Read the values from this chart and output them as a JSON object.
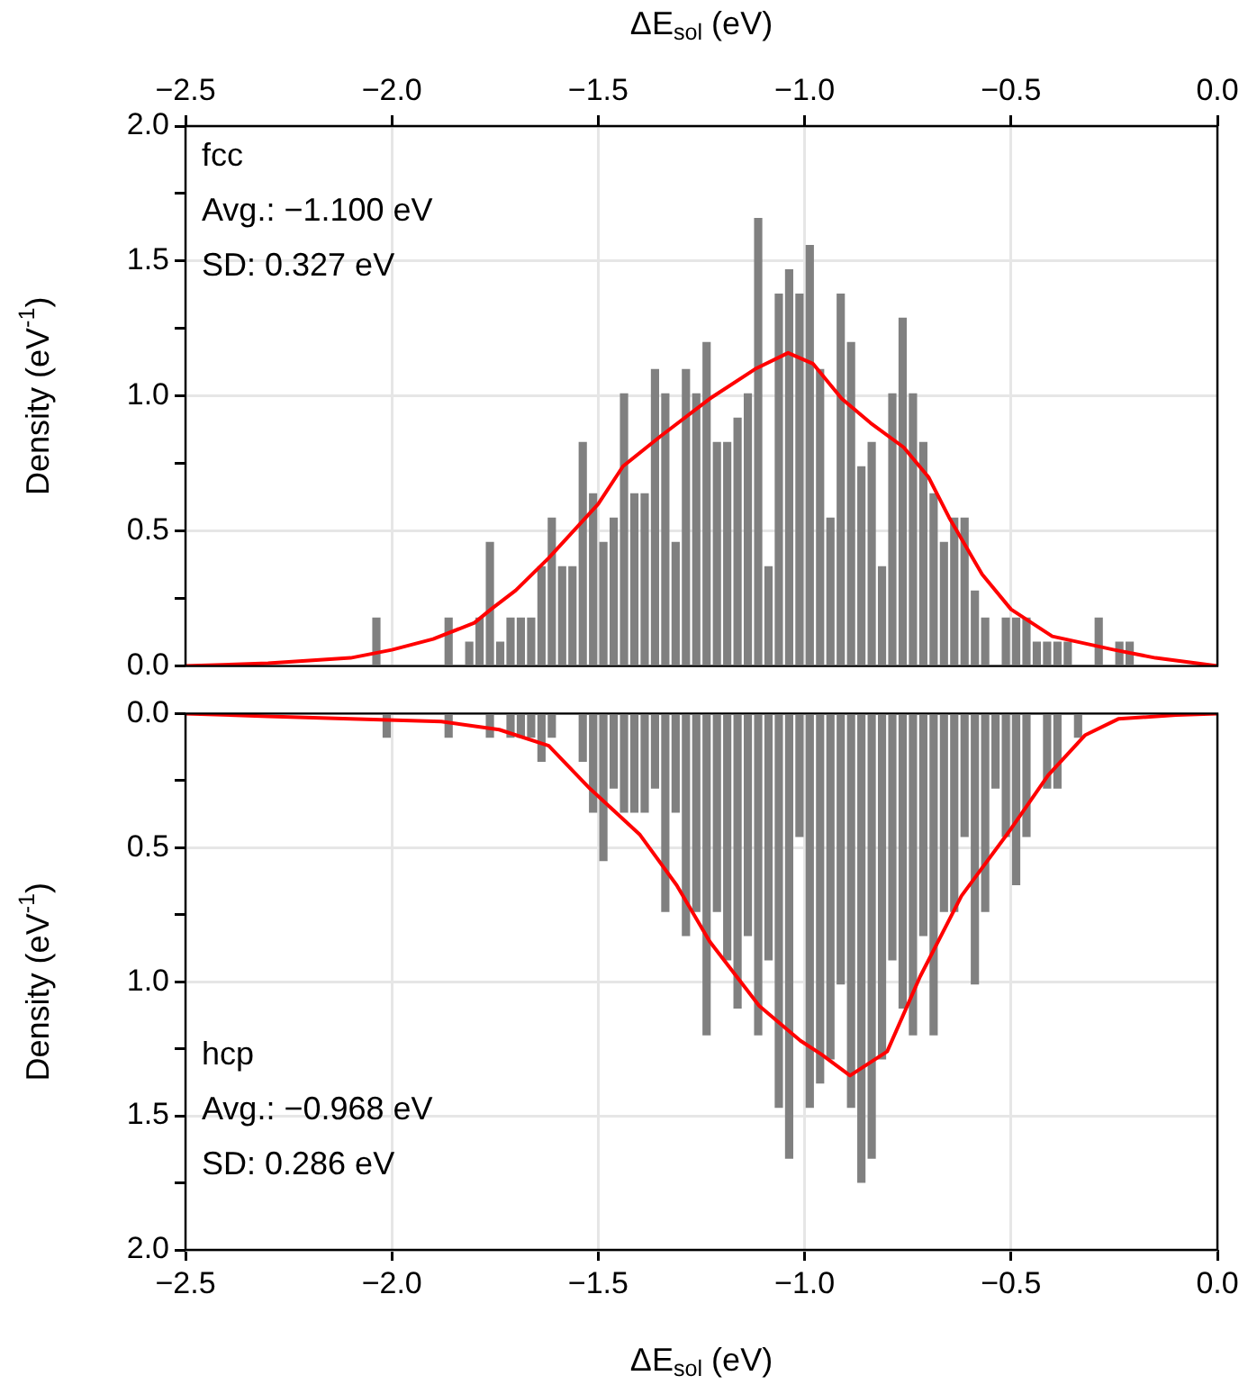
{
  "chart_data": [
    {
      "type": "histogram",
      "xlabel": "ΔE$_{sol}$ (eV)",
      "ylabel": "Density (eV$^{-1}$)",
      "xlim": [
        -2.5,
        0.0
      ],
      "xticks": [
        {
          "value": -2.5,
          "label": "−2.5"
        },
        {
          "value": -2,
          "label": "−2.0"
        },
        {
          "value": -1.5,
          "label": "−1.5"
        },
        {
          "value": -1,
          "label": "−1.0"
        },
        {
          "value": -0.5,
          "label": "−0.5"
        },
        {
          "value": 0,
          "label": "0.0"
        }
      ],
      "ylim": [
        0,
        2.0
      ],
      "yticks": [
        {
          "value": 0,
          "label": "0.0"
        },
        {
          "value": 0.25,
          "label": null
        },
        {
          "value": 0.5,
          "label": "0.5"
        },
        {
          "value": 0.75,
          "label": null
        },
        {
          "value": 1,
          "label": "1.0"
        },
        {
          "value": 1.25,
          "label": null
        },
        {
          "value": 1.5,
          "label": "1.5"
        },
        {
          "value": 1.75,
          "label": null
        },
        {
          "value": 2,
          "label": "2.0"
        }
      ],
      "grid": true,
      "annotations": [
        "fcc",
        "Avg.: −1.100 eV",
        "SD: 0.327 eV"
      ],
      "bins": [
        -2.05,
        -2.025,
        -2.0,
        -1.975,
        -1.95,
        -1.925,
        -1.9,
        -1.875,
        -1.85,
        -1.825,
        -1.8,
        -1.775,
        -1.75,
        -1.725,
        -1.7,
        -1.675,
        -1.65,
        -1.625,
        -1.6,
        -1.575,
        -1.55,
        -1.525,
        -1.5,
        -1.475,
        -1.45,
        -1.425,
        -1.4,
        -1.375,
        -1.35,
        -1.325,
        -1.3,
        -1.275,
        -1.25,
        -1.225,
        -1.2,
        -1.175,
        -1.15,
        -1.125,
        -1.1,
        -1.075,
        -1.05,
        -1.025,
        -1.0,
        -0.975,
        -0.95,
        -0.925,
        -0.9,
        -0.875,
        -0.85,
        -0.825,
        -0.8,
        -0.775,
        -0.75,
        -0.725,
        -0.7,
        -0.675,
        -0.65,
        -0.625,
        -0.6,
        -0.575,
        -0.55,
        -0.525,
        -0.5,
        -0.475,
        -0.45,
        -0.425,
        -0.4,
        -0.375,
        -0.35,
        -0.325,
        -0.3,
        -0.275,
        -0.25,
        -0.225,
        -0.2
      ],
      "series": [
        {
          "color": "#808080",
          "values": [
            0.18,
            0,
            0,
            0,
            0,
            0,
            0,
            0.18,
            0,
            0.09,
            0.18,
            0.46,
            0.09,
            0.18,
            0.18,
            0.18,
            0.37,
            0.55,
            0.37,
            0.37,
            0.83,
            0.64,
            0.46,
            0.55,
            1.01,
            0.64,
            0.64,
            1.1,
            1.01,
            0.46,
            1.1,
            1.01,
            1.2,
            0.83,
            0.83,
            0.92,
            1.01,
            1.66,
            0.37,
            1.38,
            1.47,
            1.38,
            1.56,
            1.1,
            0.55,
            1.38,
            1.2,
            0.74,
            0.83,
            0.37,
            1.01,
            1.29,
            1.01,
            0.83,
            0.64,
            0.46,
            0.55,
            0.55,
            0.28,
            0.18,
            0,
            0.18,
            0.18,
            0.18,
            0.09,
            0.09,
            0.09,
            0.09,
            0,
            0,
            0.18,
            0,
            0.09,
            0.09
          ]
        },
        {
          "type": "line",
          "color": "#ff0000",
          "x": [
            -2.5,
            -2.3,
            -2.1,
            -2.0,
            -1.9,
            -1.8,
            -1.76,
            -1.7,
            -1.62,
            -1.5,
            -1.44,
            -1.35,
            -1.23,
            -1.12,
            -1.04,
            -0.98,
            -0.91,
            -0.84,
            -0.76,
            -0.7,
            -0.65,
            -0.57,
            -0.5,
            -0.4,
            -0.25,
            -0.15,
            -0.05,
            0
          ],
          "values": [
            0,
            0.01,
            0.03,
            0.06,
            0.1,
            0.16,
            0.21,
            0.28,
            0.4,
            0.6,
            0.74,
            0.85,
            0.99,
            1.1,
            1.16,
            1.12,
            0.99,
            0.9,
            0.81,
            0.7,
            0.55,
            0.34,
            0.21,
            0.11,
            0.06,
            0.03,
            0.01,
            0
          ]
        }
      ]
    },
    {
      "type": "histogram",
      "xlabel": "ΔE$_{sol}$ (eV)",
      "ylabel": "Density (eV$^{-1}$)",
      "xlim": [
        -2.5,
        0.0
      ],
      "xticks": [
        {
          "value": -2.5,
          "label": "−2.5"
        },
        {
          "value": -2,
          "label": "−2.0"
        },
        {
          "value": -1.5,
          "label": "−1.5"
        },
        {
          "value": -1,
          "label": "−1.0"
        },
        {
          "value": -0.5,
          "label": "−0.5"
        },
        {
          "value": 0,
          "label": "0.0"
        }
      ],
      "ylim": [
        2.0,
        0
      ],
      "yticks": [
        {
          "value": 0,
          "label": "0.0"
        },
        {
          "value": 0.25,
          "label": null
        },
        {
          "value": 0.5,
          "label": "0.5"
        },
        {
          "value": 0.75,
          "label": null
        },
        {
          "value": 1,
          "label": "1.0"
        },
        {
          "value": 1.25,
          "label": null
        },
        {
          "value": 1.5,
          "label": "1.5"
        },
        {
          "value": 1.75,
          "label": null
        },
        {
          "value": 2,
          "label": "2.0"
        }
      ],
      "grid": true,
      "annotations": [
        "hcp",
        "Avg.: −0.968 eV",
        "SD: 0.286 eV"
      ],
      "bins": [
        -2.05,
        -2.025,
        -2.0,
        -1.975,
        -1.95,
        -1.925,
        -1.9,
        -1.875,
        -1.85,
        -1.825,
        -1.8,
        -1.775,
        -1.75,
        -1.725,
        -1.7,
        -1.675,
        -1.65,
        -1.625,
        -1.6,
        -1.575,
        -1.55,
        -1.525,
        -1.5,
        -1.475,
        -1.45,
        -1.425,
        -1.4,
        -1.375,
        -1.35,
        -1.325,
        -1.3,
        -1.275,
        -1.25,
        -1.225,
        -1.2,
        -1.175,
        -1.15,
        -1.125,
        -1.1,
        -1.075,
        -1.05,
        -1.025,
        -1.0,
        -0.975,
        -0.95,
        -0.925,
        -0.9,
        -0.875,
        -0.85,
        -0.825,
        -0.8,
        -0.775,
        -0.75,
        -0.725,
        -0.7,
        -0.675,
        -0.65,
        -0.625,
        -0.6,
        -0.575,
        -0.55,
        -0.525,
        -0.5,
        -0.475,
        -0.45,
        -0.425,
        -0.4,
        -0.375,
        -0.35,
        -0.325,
        -0.3,
        -0.275,
        -0.25,
        -0.225,
        -0.2
      ],
      "series": [
        {
          "color": "#808080",
          "values": [
            0,
            0.09,
            0,
            0,
            0,
            0,
            0,
            0.09,
            0,
            0,
            0,
            0.09,
            0,
            0.09,
            0.09,
            0.09,
            0.18,
            0.09,
            0,
            0,
            0.18,
            0.37,
            0.55,
            0.28,
            0.37,
            0.37,
            0.37,
            0.28,
            0.74,
            0.37,
            0.83,
            0.74,
            1.2,
            0.74,
            0.92,
            1.1,
            0.83,
            1.2,
            0.92,
            1.47,
            1.66,
            0.46,
            1.47,
            1.38,
            1.29,
            1.01,
            1.47,
            1.75,
            1.66,
            1.29,
            0.92,
            1.1,
            1.2,
            0.83,
            1.2,
            0.74,
            0.74,
            0.46,
            1.01,
            0.74,
            0.28,
            0.46,
            0.64,
            0.46,
            0,
            0.28,
            0.28,
            0,
            0.09,
            0,
            0,
            0,
            0,
            0
          ]
        },
        {
          "type": "line",
          "color": "#ff0000",
          "x": [
            -2.5,
            -2.3,
            -2.1,
            -1.88,
            -1.74,
            -1.62,
            -1.52,
            -1.4,
            -1.31,
            -1.23,
            -1.11,
            -1.01,
            -0.96,
            -0.89,
            -0.8,
            -0.72,
            -0.62,
            -0.5,
            -0.41,
            -0.32,
            -0.24,
            -0.1,
            0
          ],
          "values": [
            0,
            0.01,
            0.02,
            0.03,
            0.06,
            0.12,
            0.28,
            0.45,
            0.64,
            0.85,
            1.09,
            1.22,
            1.27,
            1.35,
            1.26,
            0.98,
            0.68,
            0.43,
            0.23,
            0.08,
            0.02,
            0.005,
            0
          ]
        }
      ]
    }
  ]
}
